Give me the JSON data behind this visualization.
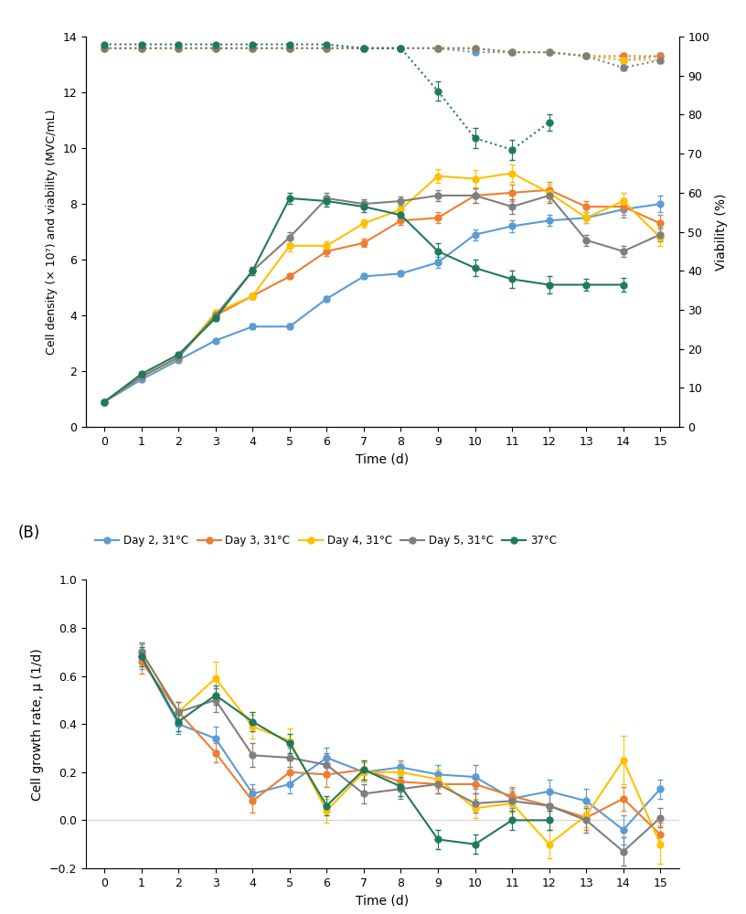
{
  "colors": {
    "day2": "#5B9BD5",
    "day3": "#ED7D31",
    "day4": "#FFC000",
    "day5": "#7F7F7F",
    "37C": "#1F7A5C"
  },
  "time_A": [
    0,
    1,
    2,
    3,
    4,
    5,
    6,
    7,
    8,
    9,
    10,
    11,
    12,
    13,
    14,
    15
  ],
  "density": {
    "day2": [
      0.9,
      1.7,
      2.4,
      3.1,
      3.6,
      3.6,
      4.6,
      5.4,
      5.5,
      5.9,
      6.9,
      7.2,
      7.4,
      7.5,
      7.8,
      8.0
    ],
    "day3": [
      0.9,
      1.8,
      2.5,
      4.0,
      4.7,
      5.4,
      6.3,
      6.6,
      7.4,
      7.5,
      8.3,
      8.4,
      8.5,
      7.9,
      7.9,
      7.3
    ],
    "day4": [
      0.9,
      1.8,
      2.5,
      4.1,
      4.7,
      6.5,
      6.5,
      7.3,
      7.8,
      9.0,
      8.9,
      9.1,
      8.4,
      7.5,
      8.1,
      6.8
    ],
    "day5": [
      0.9,
      1.8,
      2.5,
      4.0,
      5.6,
      6.8,
      8.2,
      8.0,
      8.1,
      8.3,
      8.3,
      7.9,
      8.3,
      6.7,
      6.3,
      6.9
    ],
    "37C": [
      0.9,
      1.9,
      2.6,
      3.9,
      5.6,
      8.2,
      8.1,
      7.9,
      7.6,
      6.3,
      5.7,
      5.3,
      5.1,
      5.1,
      5.1,
      null
    ]
  },
  "density_err": {
    "day2": [
      0.0,
      0.05,
      0.05,
      0.05,
      0.1,
      0.1,
      0.1,
      0.1,
      0.1,
      0.2,
      0.2,
      0.2,
      0.2,
      0.2,
      0.3,
      0.3
    ],
    "day3": [
      0.0,
      0.05,
      0.05,
      0.1,
      0.1,
      0.1,
      0.15,
      0.15,
      0.15,
      0.2,
      0.25,
      0.3,
      0.3,
      0.2,
      0.3,
      0.3
    ],
    "day4": [
      0.0,
      0.05,
      0.05,
      0.1,
      0.1,
      0.2,
      0.15,
      0.15,
      0.2,
      0.25,
      0.3,
      0.3,
      0.3,
      0.2,
      0.3,
      0.3
    ],
    "day5": [
      0.0,
      0.05,
      0.05,
      0.1,
      0.1,
      0.2,
      0.2,
      0.15,
      0.15,
      0.2,
      0.25,
      0.25,
      0.25,
      0.2,
      0.2,
      0.25
    ],
    "37C": [
      0.0,
      0.05,
      0.05,
      0.1,
      0.15,
      0.2,
      0.2,
      0.2,
      0.2,
      0.3,
      0.3,
      0.3,
      0.3,
      0.2,
      0.25,
      null
    ]
  },
  "viability": {
    "day2": [
      97,
      97,
      97,
      97,
      97,
      97,
      97,
      97,
      97,
      97,
      96,
      96,
      96,
      95,
      94,
      95
    ],
    "day3": [
      97,
      97,
      97,
      97,
      97,
      97,
      97,
      97,
      97,
      97,
      97,
      96,
      96,
      95,
      95,
      95
    ],
    "day4": [
      97,
      97,
      97,
      97,
      97,
      97,
      97,
      97,
      97,
      97,
      97,
      96,
      96,
      95,
      94,
      94
    ],
    "day5": [
      97,
      97,
      97,
      97,
      97,
      97,
      97,
      97,
      97,
      97,
      97,
      96,
      96,
      95,
      92,
      94
    ],
    "37C": [
      98,
      98,
      98,
      98,
      98,
      98,
      98,
      97,
      97,
      86,
      74,
      71,
      78,
      null,
      null,
      null
    ]
  },
  "viability_err": {
    "day2": [
      0.3,
      0.3,
      0.3,
      0.3,
      0.3,
      0.3,
      0.3,
      0.3,
      0.3,
      0.5,
      0.5,
      0.5,
      0.5,
      0.5,
      0.7,
      0.7
    ],
    "day3": [
      0.3,
      0.3,
      0.3,
      0.3,
      0.3,
      0.3,
      0.3,
      0.3,
      0.3,
      0.5,
      0.5,
      0.5,
      0.5,
      0.5,
      0.7,
      0.7
    ],
    "day4": [
      0.3,
      0.3,
      0.3,
      0.3,
      0.3,
      0.3,
      0.3,
      0.3,
      0.3,
      0.5,
      0.5,
      0.5,
      0.5,
      0.5,
      0.7,
      0.7
    ],
    "day5": [
      0.3,
      0.3,
      0.3,
      0.3,
      0.3,
      0.3,
      0.3,
      0.3,
      0.3,
      0.5,
      0.5,
      0.5,
      0.5,
      0.5,
      0.7,
      0.7
    ],
    "37C": [
      0.3,
      0.3,
      0.3,
      0.3,
      0.3,
      0.3,
      0.3,
      0.3,
      0.3,
      2.5,
      2.5,
      2.5,
      2.0,
      null,
      null,
      null
    ]
  },
  "time_B": [
    1,
    2,
    3,
    4,
    5,
    6,
    7,
    8,
    9,
    10,
    11,
    12,
    13,
    14,
    15
  ],
  "growth": {
    "day2": [
      0.68,
      0.4,
      0.34,
      0.11,
      0.15,
      0.26,
      0.2,
      0.22,
      0.19,
      0.18,
      0.09,
      0.12,
      0.08,
      -0.04,
      0.13
    ],
    "day3": [
      0.66,
      0.45,
      0.28,
      0.08,
      0.2,
      0.19,
      0.21,
      0.16,
      0.15,
      0.15,
      0.1,
      0.06,
      0.01,
      0.09,
      -0.06
    ],
    "day4": [
      0.7,
      0.45,
      0.59,
      0.39,
      0.33,
      0.04,
      0.2,
      0.2,
      0.17,
      0.05,
      0.07,
      -0.1,
      0.02,
      0.25,
      -0.1
    ],
    "day5": [
      0.7,
      0.45,
      0.5,
      0.27,
      0.26,
      0.23,
      0.11,
      0.13,
      0.15,
      0.07,
      0.08,
      0.06,
      0.0,
      -0.13,
      0.01
    ],
    "37C": [
      0.68,
      0.41,
      0.52,
      0.41,
      0.32,
      0.06,
      0.21,
      0.14,
      -0.08,
      -0.1,
      0.0,
      0.0,
      null,
      null,
      null
    ]
  },
  "growth_err": {
    "day2": [
      0.05,
      0.04,
      0.05,
      0.04,
      0.04,
      0.04,
      0.04,
      0.03,
      0.04,
      0.05,
      0.04,
      0.05,
      0.05,
      0.06,
      0.04
    ],
    "day3": [
      0.05,
      0.04,
      0.04,
      0.05,
      0.05,
      0.05,
      0.04,
      0.04,
      0.04,
      0.04,
      0.04,
      0.05,
      0.05,
      0.05,
      0.05
    ],
    "day4": [
      0.04,
      0.04,
      0.07,
      0.05,
      0.05,
      0.05,
      0.04,
      0.04,
      0.04,
      0.04,
      0.04,
      0.06,
      0.05,
      0.1,
      0.08
    ],
    "day5": [
      0.04,
      0.04,
      0.05,
      0.05,
      0.04,
      0.05,
      0.04,
      0.04,
      0.04,
      0.04,
      0.04,
      0.05,
      0.05,
      0.06,
      0.04
    ],
    "37C": [
      0.04,
      0.04,
      0.04,
      0.04,
      0.04,
      0.04,
      0.04,
      0.04,
      0.04,
      0.04,
      0.04,
      0.04,
      null,
      null,
      null
    ]
  },
  "legend_labels": [
    "Day 2, 31°C",
    "Day 3, 31°C",
    "Day 4, 31°C",
    "Day 5, 31°C",
    "37°C"
  ],
  "ylabel_A": "Cell density (× 10⁷) and viability (MVC/mL)",
  "ylabel_A_right": "Viability (%)",
  "xlabel": "Time (d)",
  "ylabel_B": "Cell growth rate, μ (1/d)"
}
